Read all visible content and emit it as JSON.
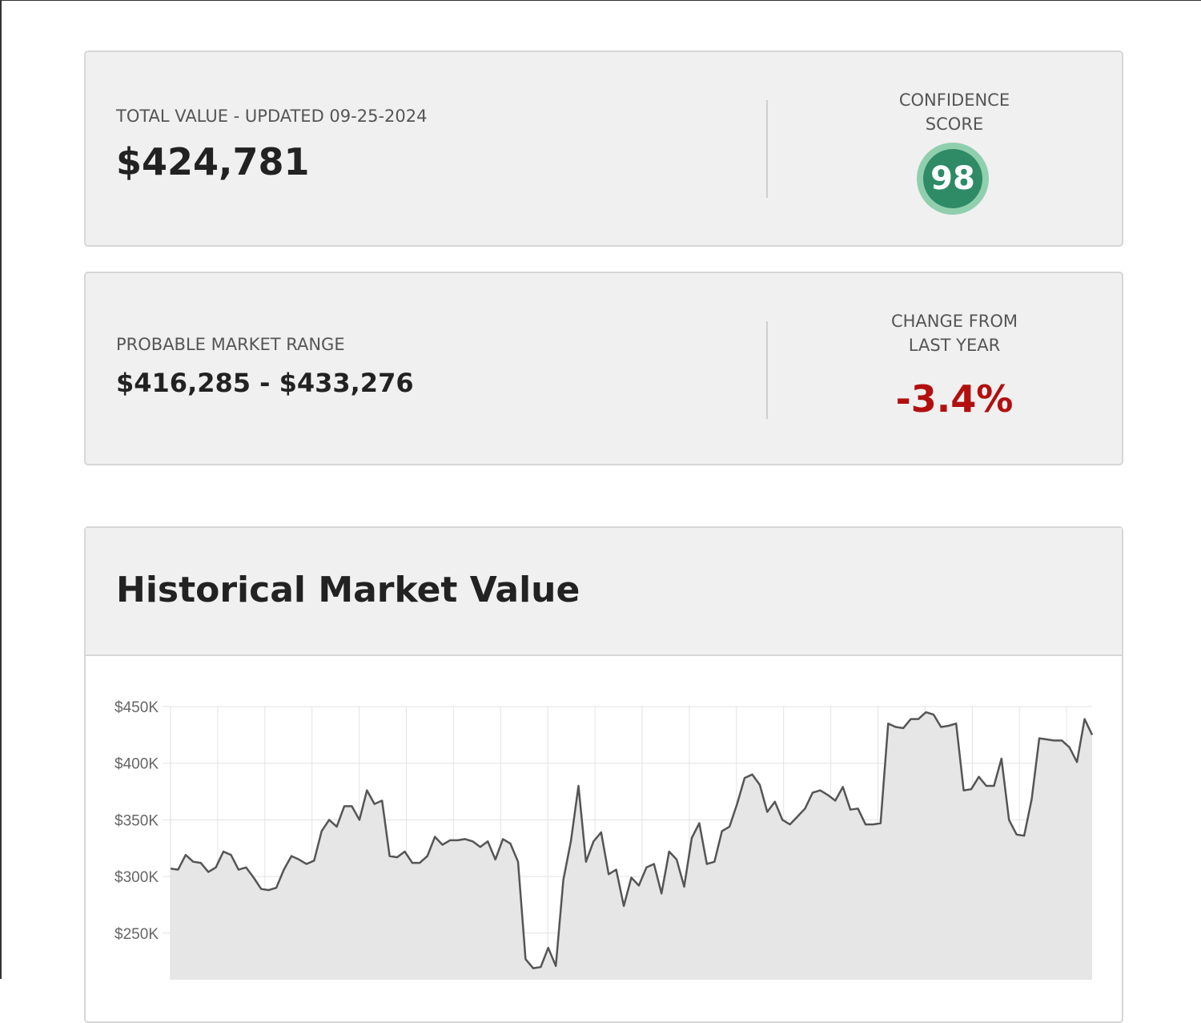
{
  "summary": {
    "total_value": {
      "label": "TOTAL VALUE - UPDATED 09-25-2024",
      "value": "$424,781"
    },
    "confidence": {
      "label": "CONFIDENCE SCORE",
      "value": "98"
    }
  },
  "range": {
    "market_range": {
      "label": "PROBABLE MARKET RANGE",
      "value": "$416,285 - $433,276"
    },
    "change": {
      "label": "CHANGE FROM LAST YEAR",
      "value": "-3.4%"
    }
  },
  "chart_data": {
    "type": "area",
    "title": "Historical Market Value",
    "color": "#555555",
    "fill": "#e6e6e6",
    "grid": true,
    "ylim": [
      200000,
      450000
    ],
    "yticks": [
      {
        "value": 250000,
        "label": "$250K"
      },
      {
        "value": 300000,
        "label": "$300K"
      },
      {
        "value": 350000,
        "label": "$350K"
      },
      {
        "value": 400000,
        "label": "$400K"
      },
      {
        "value": 450000,
        "label": "$450K"
      }
    ],
    "values": [
      307000,
      306000,
      319000,
      313000,
      312000,
      304000,
      308000,
      322000,
      319000,
      306000,
      308000,
      299000,
      289000,
      288000,
      290000,
      306000,
      318000,
      315000,
      311000,
      314000,
      340000,
      350000,
      344000,
      362000,
      362000,
      350000,
      376000,
      364000,
      367000,
      318000,
      317000,
      322000,
      312000,
      312000,
      318000,
      335000,
      328000,
      332000,
      332000,
      333000,
      331000,
      326000,
      331000,
      315000,
      333000,
      329000,
      313000,
      227000,
      219000,
      220000,
      237000,
      221000,
      297000,
      331000,
      380000,
      313000,
      331000,
      339000,
      302000,
      306000,
      274000,
      299000,
      292000,
      308000,
      311000,
      285000,
      322000,
      315000,
      291000,
      334000,
      347000,
      311000,
      313000,
      340000,
      344000,
      364000,
      387000,
      390000,
      381000,
      357000,
      366000,
      350000,
      346000,
      353000,
      360000,
      374000,
      376000,
      372000,
      367000,
      379000,
      359000,
      360000,
      346000,
      346000,
      347000,
      435000,
      432000,
      431000,
      439000,
      439000,
      445000,
      443000,
      432000,
      433000,
      435000,
      376000,
      377000,
      388000,
      380000,
      380000,
      404000,
      350000,
      337000,
      336000,
      368000,
      422000,
      421000,
      420000,
      420000,
      414000,
      401000,
      439000,
      425000
    ]
  }
}
